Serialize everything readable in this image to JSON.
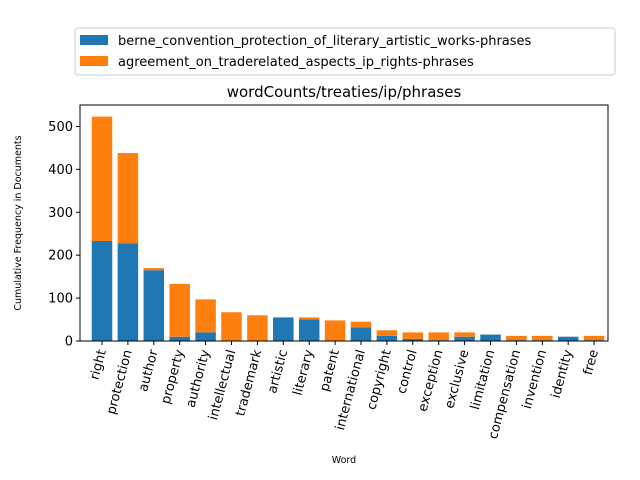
{
  "chart_data": {
    "type": "bar",
    "stacked": true,
    "title": "wordCounts/treaties/ip/phrases",
    "xlabel": "Word",
    "ylabel": "Cumulative Frequency in Documents",
    "ylim": [
      0,
      550
    ],
    "yticks": [
      0,
      100,
      200,
      300,
      400,
      500
    ],
    "legend_position": "top",
    "grid": false,
    "categories": [
      "right",
      "protection",
      "author",
      "property",
      "authority",
      "intellectual",
      "trademark",
      "artistic",
      "literary",
      "patent",
      "international",
      "copyright",
      "control",
      "exception",
      "exclusive",
      "limitation",
      "compensation",
      "invention",
      "identity",
      "free"
    ],
    "series": [
      {
        "name": "berne_convention_protection_of_literary_artistic_works-phrases",
        "color": "#1f77b4",
        "values": [
          233,
          228,
          165,
          10,
          20,
          0,
          0,
          55,
          50,
          0,
          32,
          12,
          5,
          2,
          10,
          15,
          2,
          2,
          10,
          2
        ]
      },
      {
        "name": "agreement_on_traderelated_aspects_ip_rights-phrases",
        "color": "#ff7f0e",
        "values": [
          290,
          210,
          5,
          123,
          77,
          67,
          60,
          0,
          5,
          48,
          13,
          13,
          15,
          18,
          10,
          0,
          10,
          10,
          0,
          10
        ]
      }
    ]
  }
}
